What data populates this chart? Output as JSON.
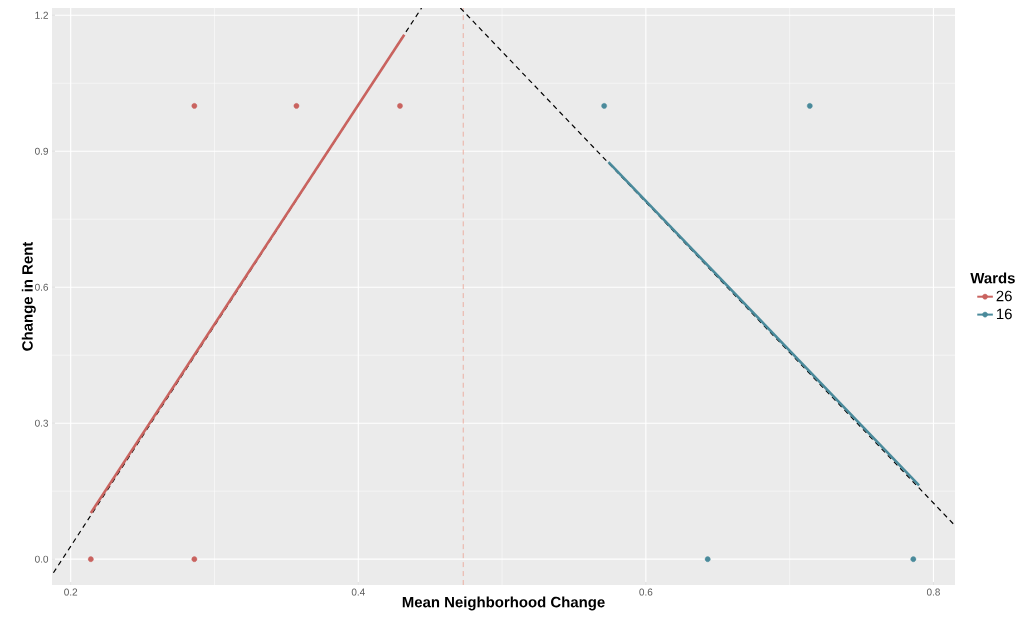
{
  "chart_data": {
    "type": "scatter",
    "xlabel": "Mean Neighborhood Change",
    "ylabel": "Change in Rent",
    "legend_title": "Wards",
    "xlim": [
      0.187,
      0.815
    ],
    "ylim": [
      -0.057,
      1.216
    ],
    "xticks": [
      0.2,
      0.4,
      0.6,
      0.8
    ],
    "yticks": [
      {
        "value": 0,
        "label": "0.0"
      },
      0.3,
      0.6,
      0.9,
      1.2
    ],
    "grid": true,
    "legend": "right",
    "series": [
      {
        "name": "26",
        "marker": "circle",
        "color": "#c9635f",
        "x": [
          0.214,
          0.286,
          0.286,
          0.357,
          0.429
        ],
        "values": [
          0,
          0,
          1,
          1,
          1
        ]
      },
      {
        "name": "16",
        "marker": "circle",
        "color": "#4a8a9b",
        "x": [
          0.571,
          0.643,
          0.714,
          0.786
        ],
        "values": [
          1,
          0,
          1,
          0
        ]
      },
      {
        "type": "line",
        "marker": "none",
        "color": "#000000",
        "line_style": "dashed",
        "x": [
          0.188,
          0.444
        ],
        "values": [
          -0.03,
          1.216
        ]
      },
      {
        "type": "line",
        "marker": "none",
        "color": "#000000",
        "line_style": "dashed",
        "x": [
          0.471,
          0.815
        ],
        "values": [
          1.216,
          0.074
        ]
      },
      {
        "type": "line",
        "marker": "none",
        "color": "#c9635f",
        "x": [
          0.214,
          0.432
        ],
        "values": [
          0.102,
          1.157
        ]
      },
      {
        "type": "line",
        "marker": "none",
        "color": "#4a8a9b",
        "x": [
          0.574,
          0.79
        ],
        "values": [
          0.876,
          0.163
        ]
      }
    ],
    "ref_lines": [
      {
        "axis": "x",
        "value": 0.473,
        "color": "#eba99c",
        "line_style": "dashed"
      }
    ]
  }
}
